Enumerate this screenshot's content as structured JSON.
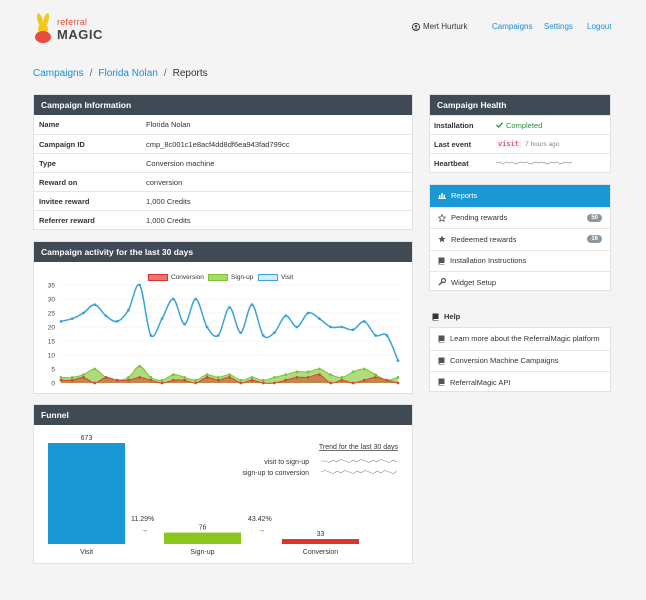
{
  "header": {
    "logo_top": "referral",
    "logo_bottom": "MAGIC",
    "user_name": "Mert Hurturk",
    "nav": [
      "Campaigns",
      "Settings",
      "Logout"
    ]
  },
  "breadcrumb": {
    "root": "Campaigns",
    "campaign": "Florida Nolan",
    "current": "Reports"
  },
  "campaign_info": {
    "title": "Campaign Information",
    "rows": [
      {
        "key": "Name",
        "value": "Florida Nolan"
      },
      {
        "key": "Campaign ID",
        "value": "cmp_8c001c1e8acf4dd8df6ea943fad799cc"
      },
      {
        "key": "Type",
        "value": "Conversion machine"
      },
      {
        "key": "Reward on",
        "value": "conversion"
      },
      {
        "key": "Invitee reward",
        "value": "1,000 Credits"
      },
      {
        "key": "Referrer reward",
        "value": "1,000 Credits"
      }
    ]
  },
  "health": {
    "title": "Campaign Health",
    "installation_label": "Installation",
    "installation_value": "Completed",
    "last_event_label": "Last event",
    "last_event_code": "visit",
    "last_event_time": "7 hours ago",
    "heartbeat_label": "Heartbeat"
  },
  "menu": {
    "reports": "Reports",
    "pending": "Pending rewards",
    "pending_count": "50",
    "redeemed": "Redeemed rewards",
    "redeemed_count": "16",
    "install": "Installation Instructions",
    "widget": "Widget Setup"
  },
  "help": {
    "title": "Help",
    "links": [
      "Learn more about the ReferralMagic platform",
      "Conversion Machine Campaigns",
      "ReferralMagic API"
    ]
  },
  "activity": {
    "title": "Campaign activity for the last 30 days"
  },
  "chart_data": {
    "type": "line",
    "title": "",
    "ylim": [
      0,
      35
    ],
    "yticks": [
      0,
      5,
      10,
      15,
      20,
      25,
      30,
      35
    ],
    "series": [
      {
        "name": "Conversion",
        "color": "#d9453a",
        "fill": "rgba(201,107,60,0.75)",
        "values": [
          1,
          1,
          2,
          0,
          2,
          1,
          1,
          2,
          1,
          0,
          1,
          1,
          0,
          2,
          1,
          2,
          0,
          1,
          0,
          0,
          1,
          2,
          2,
          3,
          0,
          1,
          0,
          1,
          2,
          1,
          0
        ]
      },
      {
        "name": "Sign-up",
        "color": "#7cc52c",
        "fill": "rgba(140,205,70,0.7)",
        "values": [
          2,
          2,
          3,
          5,
          2,
          1,
          2,
          6,
          2,
          1,
          3,
          2,
          1,
          3,
          2,
          3,
          1,
          2,
          1,
          2,
          3,
          4,
          4,
          5,
          3,
          2,
          4,
          5,
          3,
          1,
          2
        ]
      },
      {
        "name": "Visit",
        "color": "#3aa3d9",
        "fill": "none",
        "values": [
          22,
          23,
          25,
          28,
          24,
          22,
          26,
          35,
          17,
          23,
          30,
          21,
          30,
          20,
          17,
          27,
          18,
          28,
          17,
          18,
          24,
          20,
          25,
          23,
          20,
          20,
          19,
          22,
          17,
          17,
          8
        ]
      }
    ]
  },
  "funnel": {
    "title": "Funnel",
    "trend_title": "Trend for the last 30 days",
    "trend_labels": [
      "visit to sign-up",
      "sign-up to conversion"
    ],
    "stages": [
      {
        "label": "Visit",
        "value": 673,
        "color": "#1a98d5"
      },
      {
        "label": "Sign-up",
        "value": 76,
        "color": "#8cc51b"
      },
      {
        "label": "Conversion",
        "value": 33,
        "color": "#d9342b"
      }
    ],
    "rates": [
      "11.29%",
      "43.42%"
    ]
  }
}
